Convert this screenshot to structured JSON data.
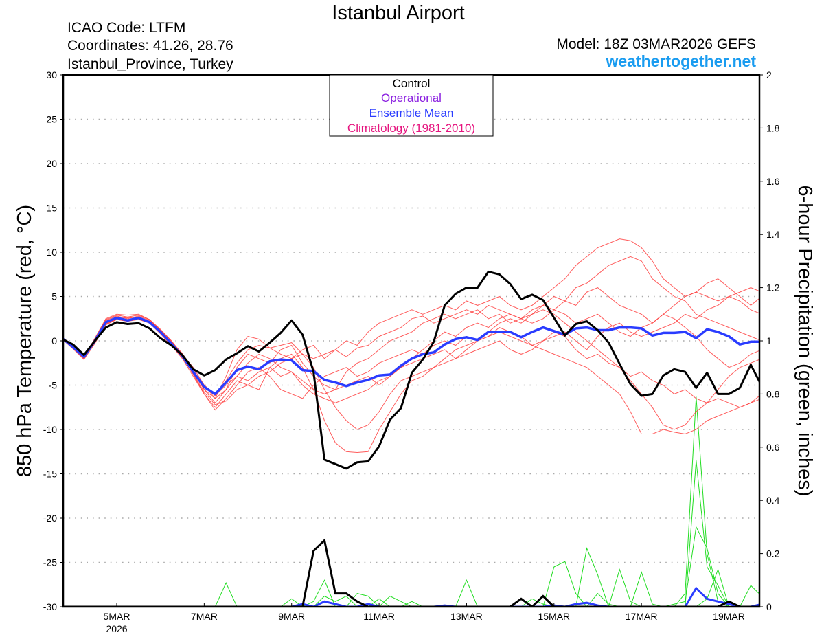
{
  "chart_data": {
    "type": "line",
    "title": "Istanbul Airport",
    "info_left": [
      "ICAO Code: LTFM",
      "Coordinates: 41.26, 28.76",
      "Istanbul_Province, Turkey"
    ],
    "model": "Model: 18Z 03MAR2026 GEFS",
    "site": "weathertogether.net",
    "ylabel_left": "850 hPa Temperature (red, °C)",
    "ylabel_right": "6-hour Precipitation (green, inches)",
    "ylim_left": [
      -30,
      30
    ],
    "ylim_right": [
      0,
      2
    ],
    "yticks_left": [
      "30",
      "25",
      "20",
      "15",
      "10",
      "5",
      "0",
      "-5",
      "-10",
      "-15",
      "-20",
      "-25",
      "-30"
    ],
    "yticks_right": [
      "2",
      "1.8",
      "1.6",
      "1.4",
      "1.2",
      "1",
      "0.8",
      "0.6",
      "0.4",
      "0.2",
      "0"
    ],
    "x_start": "03MAR2026 18Z",
    "x_step_hours": 6,
    "xticks": [
      {
        "label": "5MAR",
        "sub": "2026",
        "step": 5
      },
      {
        "label": "7MAR",
        "step": 13
      },
      {
        "label": "9MAR",
        "step": 21
      },
      {
        "label": "11MAR",
        "step": 29
      },
      {
        "label": "13MAR",
        "step": 37
      },
      {
        "label": "15MAR",
        "step": 45
      },
      {
        "label": "17MAR",
        "step": 53
      },
      {
        "label": "19MAR",
        "step": 61
      }
    ],
    "legend": [
      {
        "label": "Control",
        "color": "#000000"
      },
      {
        "label": "Operational",
        "color": "#8a1ee0"
      },
      {
        "label": "Ensemble Mean",
        "color": "#2a3cff"
      },
      {
        "label": "Climatology (1981-2010)",
        "color": "#e6157f"
      }
    ],
    "colors": {
      "member_temp": "#ff4040",
      "member_precip": "#22dd22",
      "control": "#000000",
      "mean": "#2a3cff",
      "site": "#1a9cf0"
    },
    "temperature": {
      "control": [
        0.2,
        -0.4,
        -1.6,
        0.0,
        1.5,
        2.1,
        1.9,
        2.0,
        1.4,
        0.3,
        -0.5,
        -1.6,
        -3.2,
        -3.9,
        -3.3,
        -2.1,
        -1.4,
        -0.6,
        -1.2,
        -0.2,
        0.9,
        2.3,
        0.7,
        -3.5,
        -13.4,
        -13.9,
        -14.4,
        -13.7,
        -13.6,
        -11.9,
        -8.9,
        -7.6,
        -3.6,
        -2.1,
        -0.1,
        4.0,
        5.3,
        6.0,
        6.0,
        7.8,
        7.5,
        6.4,
        4.7,
        5.2,
        4.6,
        2.6,
        0.6,
        1.9,
        2.2,
        1.2,
        -0.2,
        -2.6,
        -4.9,
        -6.2,
        -6.0,
        -3.9,
        -3.2,
        -3.5,
        -5.3,
        -3.6,
        -6.0,
        -6.0,
        -5.3,
        -2.7,
        -5.1
      ],
      "mean": [
        0.3,
        -0.7,
        -1.8,
        0.0,
        2.1,
        2.6,
        2.3,
        2.6,
        2.1,
        1.0,
        -0.3,
        -1.7,
        -3.5,
        -5.2,
        -6.0,
        -4.7,
        -3.3,
        -2.9,
        -3.2,
        -2.3,
        -2.1,
        -2.2,
        -3.3,
        -3.4,
        -4.4,
        -4.7,
        -5.1,
        -4.7,
        -4.4,
        -3.9,
        -3.8,
        -2.8,
        -2.0,
        -1.5,
        -1.3,
        -0.4,
        0.2,
        0.4,
        0.1,
        1.0,
        1.0,
        1.0,
        0.4,
        1.0,
        1.5,
        1.1,
        0.7,
        1.4,
        1.5,
        1.2,
        1.2,
        1.5,
        1.5,
        1.4,
        0.6,
        0.9,
        0.9,
        1.0,
        0.3,
        1.3,
        1.0,
        0.5,
        -0.4,
        -0.1,
        -0.1
      ],
      "members": [
        [
          0.4,
          -0.5,
          -1.9,
          0.3,
          2.5,
          3.0,
          2.9,
          3.0,
          2.4,
          1.2,
          0.0,
          -1.5,
          -3.3,
          -5.5,
          -6.5,
          -4.0,
          -1.0,
          0.5,
          0.2,
          -0.8,
          -1.5,
          -2.0,
          -1.0,
          -0.5,
          -2.0,
          -1.0,
          0.0,
          -0.5,
          1.0,
          2.0,
          2.5,
          3.0,
          3.5,
          3.0,
          3.5,
          4.0,
          3.5,
          4.5,
          4.0,
          4.5,
          5.0,
          4.0,
          3.5,
          4.0,
          5.0,
          6.0,
          7.0,
          8.5,
          9.5,
          10.5,
          11.0,
          11.5,
          11.3,
          10.5,
          9.0,
          7.0,
          6.0,
          5.0,
          5.5,
          5.0,
          4.5,
          5.0,
          5.5,
          6.0,
          5.5
        ],
        [
          0.2,
          -0.8,
          -2.0,
          -0.2,
          1.8,
          2.4,
          2.2,
          2.4,
          2.0,
          0.8,
          -0.5,
          -2.0,
          -4.0,
          -6.0,
          -7.5,
          -6.0,
          -4.5,
          -5.0,
          -5.5,
          -3.0,
          -2.0,
          -1.5,
          -3.0,
          -5.5,
          -9.0,
          -11.5,
          -12.5,
          -12.6,
          -12.5,
          -10.0,
          -8.0,
          -6.0,
          -4.5,
          -4.0,
          -3.0,
          -2.0,
          -1.0,
          -0.5,
          0.0,
          0.5,
          1.0,
          0.5,
          0.0,
          -0.5,
          -1.0,
          -1.5,
          -2.0,
          -2.5,
          -3.0,
          -4.0,
          -5.0,
          -6.0,
          -8.0,
          -10.5,
          -10.5,
          -10.0,
          -10.3,
          -10.5,
          -10.0,
          -9.0,
          -8.5,
          -8.0,
          -7.5,
          -7.0,
          -6.5
        ],
        [
          0.3,
          -0.6,
          -1.7,
          0.2,
          2.3,
          2.8,
          2.5,
          2.8,
          2.3,
          1.2,
          -0.2,
          -1.5,
          -3.0,
          -5.0,
          -6.5,
          -5.5,
          -3.0,
          -1.5,
          -2.0,
          -2.5,
          -1.0,
          -0.5,
          -2.5,
          -4.0,
          -5.0,
          -5.5,
          -3.5,
          -2.5,
          -2.0,
          -1.0,
          0.0,
          0.5,
          1.0,
          2.0,
          2.5,
          3.0,
          2.5,
          3.0,
          3.5,
          2.5,
          3.0,
          2.0,
          2.5,
          3.0,
          4.0,
          3.5,
          4.5,
          6.0,
          6.5,
          7.5,
          8.5,
          9.0,
          9.5,
          9.0,
          7.0,
          6.0,
          5.0,
          4.5,
          3.0,
          2.5,
          2.0,
          1.5,
          1.0,
          0.5,
          0.0
        ],
        [
          0.2,
          -0.9,
          -2.1,
          -0.3,
          1.9,
          2.5,
          2.4,
          2.5,
          2.0,
          0.9,
          -0.4,
          -1.8,
          -3.8,
          -6.0,
          -7.8,
          -6.5,
          -5.0,
          -3.5,
          -3.0,
          -4.0,
          -5.5,
          -6.0,
          -6.5,
          -5.0,
          -4.0,
          -3.5,
          -3.0,
          -4.0,
          -3.5,
          -2.5,
          -2.0,
          -1.5,
          -1.0,
          -1.5,
          -0.5,
          0.0,
          -0.5,
          0.5,
          0.0,
          0.5,
          1.5,
          1.0,
          0.5,
          -0.5,
          0.0,
          1.0,
          0.5,
          -1.0,
          -2.0,
          -1.5,
          -2.5,
          -3.0,
          -4.0,
          -3.5,
          -4.5,
          -5.0,
          -6.0,
          -5.5,
          -6.5,
          -7.0,
          -6.5,
          -7.0,
          -7.5,
          -7.0,
          -6.0
        ],
        [
          0.4,
          -0.6,
          -1.8,
          0.1,
          2.0,
          2.5,
          2.4,
          2.6,
          2.2,
          1.1,
          -0.1,
          -1.4,
          -3.3,
          -5.0,
          -6.0,
          -4.5,
          -2.5,
          -1.0,
          -0.5,
          -0.8,
          -0.5,
          -0.2,
          -1.5,
          -2.0,
          -1.5,
          -1.0,
          -1.8,
          -0.8,
          -0.5,
          0.5,
          1.0,
          1.5,
          2.5,
          2.8,
          2.0,
          2.5,
          3.0,
          3.5,
          3.0,
          4.0,
          3.5,
          3.0,
          2.5,
          3.5,
          4.0,
          5.0,
          4.5,
          4.0,
          5.5,
          6.0,
          5.0,
          4.0,
          3.5,
          3.0,
          2.0,
          3.0,
          2.5,
          1.5,
          0.5,
          -1.0,
          -2.0,
          -3.0,
          -2.5,
          -1.5,
          -1.0
        ],
        [
          0.3,
          -0.7,
          -1.9,
          0.0,
          2.2,
          2.7,
          2.6,
          2.7,
          2.2,
          1.0,
          -0.3,
          -1.7,
          -3.6,
          -5.5,
          -7.0,
          -5.5,
          -4.0,
          -4.5,
          -3.5,
          -3.0,
          -4.0,
          -3.5,
          -4.5,
          -5.5,
          -6.0,
          -5.5,
          -5.0,
          -4.5,
          -4.0,
          -5.0,
          -4.0,
          -3.0,
          -2.5,
          -2.0,
          -1.5,
          -1.0,
          -2.0,
          -1.0,
          0.0,
          1.0,
          2.0,
          2.5,
          2.0,
          3.0,
          3.5,
          3.0,
          2.0,
          1.0,
          0.0,
          -1.0,
          -2.0,
          -3.0,
          -4.5,
          -6.0,
          -7.5,
          -9.5,
          -10.0,
          -9.5,
          -8.0,
          -7.0,
          -5.5,
          -4.0,
          -3.0,
          -2.5,
          -2.0
        ],
        [
          0.3,
          -0.5,
          -1.7,
          0.2,
          2.4,
          2.9,
          2.7,
          2.9,
          2.4,
          1.3,
          0.0,
          -1.6,
          -3.4,
          -5.2,
          -6.2,
          -5.0,
          -4.0,
          -2.5,
          -1.5,
          -2.0,
          -3.0,
          -3.5,
          -5.0,
          -6.0,
          -6.5,
          -7.0,
          -6.5,
          -6.0,
          -5.5,
          -4.5,
          -4.0,
          -3.0,
          -2.0,
          -1.0,
          0.0,
          1.0,
          0.5,
          1.5,
          2.0,
          1.5,
          2.5,
          3.0,
          2.5,
          2.0,
          2.5,
          3.5,
          3.0,
          2.0,
          2.5,
          3.0,
          2.0,
          1.0,
          0.5,
          1.5,
          2.0,
          3.0,
          4.0,
          5.0,
          5.5,
          6.5,
          7.0,
          6.0,
          5.0,
          4.0,
          5.0
        ],
        [
          0.2,
          -0.8,
          -2.0,
          -0.1,
          1.9,
          2.4,
          2.2,
          2.5,
          2.0,
          0.8,
          -0.5,
          -1.9,
          -3.7,
          -5.8,
          -7.2,
          -6.8,
          -5.5,
          -5.0,
          -4.0,
          -3.5,
          -2.5,
          -2.0,
          -1.5,
          -3.0,
          -5.5,
          -7.5,
          -9.0,
          -10.0,
          -9.5,
          -8.0,
          -6.0,
          -4.5,
          -4.0,
          -3.5,
          -3.0,
          -2.5,
          -2.0,
          -1.5,
          -1.0,
          -0.5,
          0.0,
          -1.0,
          -1.5,
          -1.0,
          0.0,
          0.5,
          1.0,
          0.0,
          -1.0,
          0.5,
          1.5,
          2.0,
          1.0,
          0.5,
          1.0,
          1.5,
          2.0,
          3.0,
          2.5,
          3.5,
          4.0,
          5.0,
          4.5,
          3.5,
          3.0
        ]
      ]
    },
    "precipitation_nonzero": {
      "note_steps": "step index from x_start, 6-hourly; unlisted steps are 0",
      "control": [
        [
          22,
          0.0
        ],
        [
          23,
          0.21
        ],
        [
          24,
          0.25
        ],
        [
          25,
          0.05
        ],
        [
          26,
          0.05
        ],
        [
          27,
          0.02
        ],
        [
          28,
          0.0
        ],
        [
          41,
          0.0
        ],
        [
          42,
          0.03
        ],
        [
          43,
          0.0
        ],
        [
          44,
          0.04
        ],
        [
          45,
          0.0
        ],
        [
          60,
          0.0
        ],
        [
          61,
          0.02
        ],
        [
          62,
          0.0
        ]
      ],
      "mean": [
        [
          21,
          0.0
        ],
        [
          22,
          0.01
        ],
        [
          24,
          0.02
        ],
        [
          25,
          0.01
        ],
        [
          28,
          0.01
        ],
        [
          35,
          0.005
        ],
        [
          45,
          0.005
        ],
        [
          47,
          0.01
        ],
        [
          48,
          0.015
        ],
        [
          49,
          0.005
        ],
        [
          56,
          0.0
        ],
        [
          57,
          0.0
        ],
        [
          58,
          0.07
        ],
        [
          59,
          0.03
        ],
        [
          60,
          0.02
        ],
        [
          61,
          0.01
        ],
        [
          64,
          0.01
        ]
      ],
      "members": [
        [
          [
            57,
            0.05
          ],
          [
            58,
            0.79
          ],
          [
            59,
            0.2
          ],
          [
            60,
            0.02
          ],
          [
            61,
            0.0
          ]
        ],
        [
          [
            57,
            0.0
          ],
          [
            58,
            0.55
          ],
          [
            59,
            0.15
          ],
          [
            60,
            0.08
          ],
          [
            61,
            0.0
          ]
        ],
        [
          [
            44,
            0.0
          ],
          [
            45,
            0.15
          ],
          [
            46,
            0.17
          ],
          [
            47,
            0.05
          ],
          [
            48,
            0.0
          ],
          [
            52,
            0.0
          ],
          [
            53,
            0.13
          ],
          [
            54,
            0.01
          ],
          [
            62,
            0.0
          ],
          [
            63,
            0.08
          ],
          [
            64,
            0.04
          ]
        ],
        [
          [
            47,
            0.0
          ],
          [
            48,
            0.22
          ],
          [
            49,
            0.12
          ],
          [
            50,
            0.0
          ],
          [
            51,
            0.14
          ],
          [
            52,
            0.02
          ],
          [
            53,
            0.0
          ],
          [
            58,
            0.0
          ],
          [
            59,
            0.03
          ],
          [
            60,
            0.14
          ],
          [
            61,
            0.0
          ]
        ],
        [
          [
            14,
            0.0
          ],
          [
            15,
            0.09
          ],
          [
            16,
            0.0
          ],
          [
            23,
            0.02
          ],
          [
            24,
            0.1
          ],
          [
            25,
            0.0
          ],
          [
            27,
            0.05
          ],
          [
            28,
            0.04
          ],
          [
            30,
            0.04
          ],
          [
            31,
            0.02
          ],
          [
            36,
            0.0
          ],
          [
            37,
            0.1
          ],
          [
            38,
            0.0
          ]
        ],
        [
          [
            20,
            0.0
          ],
          [
            21,
            0.03
          ],
          [
            24,
            0.04
          ],
          [
            25,
            0.02
          ],
          [
            26,
            0.04
          ],
          [
            29,
            0.03
          ],
          [
            32,
            0.02
          ],
          [
            42,
            0.0
          ],
          [
            43,
            0.03
          ],
          [
            44,
            0.01
          ],
          [
            49,
            0.05
          ],
          [
            50,
            0.01
          ],
          [
            55,
            0.0
          ],
          [
            56,
            0.01
          ],
          [
            57,
            0.02
          ],
          [
            58,
            0.3
          ],
          [
            59,
            0.22
          ],
          [
            60,
            0.05
          ],
          [
            61,
            0.0
          ]
        ]
      ]
    }
  }
}
